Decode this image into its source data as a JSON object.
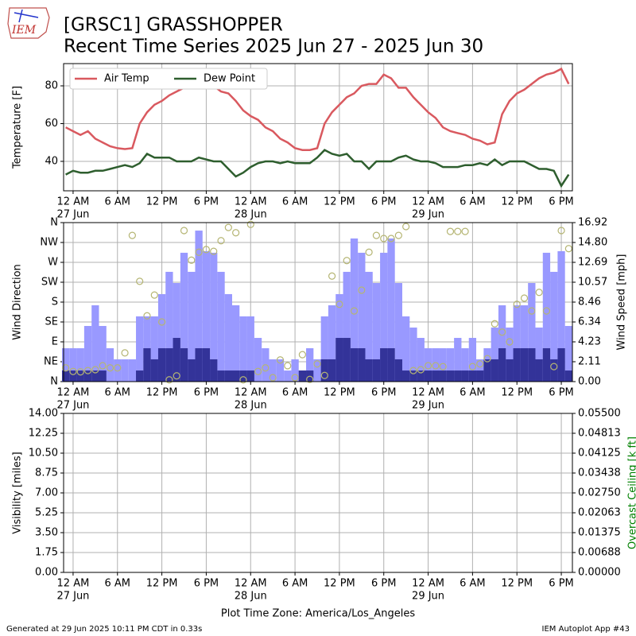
{
  "header": {
    "logo": "IEM",
    "title": "[GRSC1] GRASSHOPPER",
    "subtitle": "Recent Time Series 2025 Jun 27 - 2025 Jun 30"
  },
  "footer": {
    "left": "Generated at 29 Jun 2025 10:11 PM CDT in 0.33s",
    "right": "IEM Autoplot App #43"
  },
  "chart_data": [
    {
      "type": "line",
      "ylabel": "Temperature [F]",
      "grid": true,
      "legend": "upper left",
      "x": [
        "26 Jun 23:00",
        "27 Jun 00:00",
        "27 Jun 01:00",
        "27 Jun 02:00",
        "27 Jun 03:00",
        "27 Jun 04:00",
        "27 Jun 05:00",
        "27 Jun 06:00",
        "27 Jun 07:00",
        "27 Jun 08:00",
        "27 Jun 09:00",
        "27 Jun 10:00",
        "27 Jun 11:00",
        "27 Jun 12:00",
        "27 Jun 13:00",
        "27 Jun 14:00",
        "27 Jun 15:00",
        "27 Jun 16:00",
        "27 Jun 17:00",
        "27 Jun 18:00",
        "27 Jun 19:00",
        "27 Jun 20:00",
        "27 Jun 21:00",
        "27 Jun 22:00",
        "27 Jun 23:00",
        "28 Jun 00:00",
        "28 Jun 01:00",
        "28 Jun 02:00",
        "28 Jun 03:00",
        "28 Jun 04:00",
        "28 Jun 05:00",
        "28 Jun 06:00",
        "28 Jun 07:00",
        "28 Jun 08:00",
        "28 Jun 09:00",
        "28 Jun 10:00",
        "28 Jun 11:00",
        "28 Jun 12:00",
        "28 Jun 13:00",
        "28 Jun 14:00",
        "28 Jun 15:00",
        "28 Jun 16:00",
        "28 Jun 17:00",
        "28 Jun 18:00",
        "28 Jun 19:00",
        "28 Jun 20:00",
        "28 Jun 21:00",
        "28 Jun 22:00",
        "28 Jun 23:00",
        "29 Jun 00:00",
        "29 Jun 01:00",
        "29 Jun 02:00",
        "29 Jun 03:00",
        "29 Jun 04:00",
        "29 Jun 05:00",
        "29 Jun 06:00",
        "29 Jun 07:00",
        "29 Jun 08:00",
        "29 Jun 09:00",
        "29 Jun 10:00",
        "29 Jun 11:00",
        "29 Jun 12:00",
        "29 Jun 13:00",
        "29 Jun 14:00",
        "29 Jun 15:00",
        "29 Jun 16:00",
        "29 Jun 17:00",
        "29 Jun 18:00",
        "29 Jun 19:00"
      ],
      "series": [
        {
          "name": "Air Temp",
          "color": "#d9595f",
          "values": [
            58,
            56,
            54,
            56,
            52,
            50,
            48,
            47,
            46.5,
            47,
            60,
            66,
            70,
            72,
            75,
            77,
            79,
            81,
            82,
            82,
            80,
            77,
            76,
            72,
            67,
            64,
            62,
            58,
            56,
            52,
            50,
            47,
            46,
            46,
            47,
            60,
            66,
            70,
            74,
            76,
            80,
            81,
            81,
            86,
            84,
            79,
            79,
            74,
            70,
            66,
            63,
            58,
            56,
            55,
            54,
            52,
            51,
            49,
            50,
            65,
            72,
            76,
            78,
            81,
            84,
            86,
            87,
            89,
            81
          ]
        },
        {
          "name": "Dew Point",
          "color": "#2e5e2e",
          "values": [
            33,
            35,
            34,
            34,
            35,
            35,
            36,
            37,
            38,
            37,
            39,
            44,
            42,
            42,
            42,
            40,
            40,
            40,
            42,
            41,
            40,
            40,
            36,
            32,
            34,
            37,
            39,
            40,
            40,
            39,
            40,
            39,
            39,
            39,
            42,
            46,
            44,
            43,
            44,
            40,
            40,
            36,
            40,
            40,
            40,
            42,
            43,
            41,
            40,
            40,
            39,
            37,
            37,
            37,
            38,
            38,
            39,
            38,
            41,
            38,
            40,
            40,
            40,
            38,
            36,
            36,
            35,
            27,
            33
          ]
        }
      ],
      "xlim": [
        "26 Jun 22:43",
        "29 Jun 19:30"
      ],
      "ylim": [
        24.4,
        91.8
      ],
      "yticks": [
        40,
        60,
        80
      ],
      "xticks": [
        {
          "value": "27 Jun 00:00",
          "label": "12 AM",
          "date": "27 Jun"
        },
        {
          "value": "27 Jun 06:00",
          "label": "6 AM"
        },
        {
          "value": "27 Jun 12:00",
          "label": "12 PM"
        },
        {
          "value": "27 Jun 18:00",
          "label": "6 PM"
        },
        {
          "value": "28 Jun 00:00",
          "label": "12 AM",
          "date": "28 Jun"
        },
        {
          "value": "28 Jun 06:00",
          "label": "6 AM"
        },
        {
          "value": "28 Jun 12:00",
          "label": "12 PM"
        },
        {
          "value": "28 Jun 18:00",
          "label": "6 PM"
        },
        {
          "value": "29 Jun 00:00",
          "label": "12 AM",
          "date": "29 Jun"
        },
        {
          "value": "29 Jun 06:00",
          "label": "6 AM"
        },
        {
          "value": "29 Jun 12:00",
          "label": "12 PM"
        },
        {
          "value": "29 Jun 18:00",
          "label": "6 PM"
        }
      ]
    },
    {
      "type": "bar",
      "ylabel": "Wind Direction",
      "y2label": "Wind Speed [mph]",
      "grid": true,
      "x": [
        "26 Jun 23:00",
        "27 Jun 00:00",
        "27 Jun 01:00",
        "27 Jun 02:00",
        "27 Jun 03:00",
        "27 Jun 04:00",
        "27 Jun 05:00",
        "27 Jun 06:00",
        "27 Jun 07:00",
        "27 Jun 08:00",
        "27 Jun 09:00",
        "27 Jun 10:00",
        "27 Jun 11:00",
        "27 Jun 12:00",
        "27 Jun 13:00",
        "27 Jun 14:00",
        "27 Jun 15:00",
        "27 Jun 16:00",
        "27 Jun 17:00",
        "27 Jun 18:00",
        "27 Jun 19:00",
        "27 Jun 20:00",
        "27 Jun 21:00",
        "27 Jun 22:00",
        "27 Jun 23:00",
        "28 Jun 00:00",
        "28 Jun 01:00",
        "28 Jun 02:00",
        "28 Jun 03:00",
        "28 Jun 04:00",
        "28 Jun 05:00",
        "28 Jun 06:00",
        "28 Jun 07:00",
        "28 Jun 08:00",
        "28 Jun 09:00",
        "28 Jun 10:00",
        "28 Jun 11:00",
        "28 Jun 12:00",
        "28 Jun 13:00",
        "28 Jun 14:00",
        "28 Jun 15:00",
        "28 Jun 16:00",
        "28 Jun 17:00",
        "28 Jun 18:00",
        "28 Jun 19:00",
        "28 Jun 20:00",
        "28 Jun 21:00",
        "28 Jun 22:00",
        "28 Jun 23:00",
        "29 Jun 00:00",
        "29 Jun 01:00",
        "29 Jun 02:00",
        "29 Jun 03:00",
        "29 Jun 04:00",
        "29 Jun 05:00",
        "29 Jun 06:00",
        "29 Jun 07:00",
        "29 Jun 08:00",
        "29 Jun 09:00",
        "29 Jun 10:00",
        "29 Jun 11:00",
        "29 Jun 12:00",
        "29 Jun 13:00",
        "29 Jun 14:00",
        "29 Jun 15:00",
        "29 Jun 16:00",
        "29 Jun 17:00",
        "29 Jun 18:00",
        "29 Jun 19:00"
      ],
      "series": [
        {
          "color": "#9999ff",
          "axis": "y2",
          "values": [
            3.55,
            3.55,
            3.55,
            5.92,
            8.12,
            5.92,
            3.55,
            2.37,
            2.37,
            2.37,
            6.94,
            6.94,
            6.94,
            9.31,
            11.68,
            10.49,
            13.71,
            11.68,
            16.07,
            13.88,
            13.71,
            11.68,
            9.31,
            8.12,
            6.94,
            6.94,
            4.65,
            3.55,
            2.37,
            2.37,
            1.18,
            2.37,
            1.18,
            3.55,
            2.37,
            6.94,
            8.12,
            9.31,
            11.68,
            15.23,
            13.71,
            11.68,
            10.49,
            13.71,
            15.23,
            10.49,
            6.94,
            5.75,
            4.65,
            3.55,
            3.55,
            3.55,
            3.55,
            4.65,
            3.55,
            4.65,
            2.37,
            3.55,
            5.75,
            8.12,
            5.75,
            8.12,
            8.12,
            10.49,
            5.75,
            13.71,
            11.68,
            13.88,
            5.92
          ]
        },
        {
          "color": "#333399",
          "axis": "y2",
          "values": [
            1.18,
            1.18,
            1.18,
            1.18,
            1.18,
            1.18,
            0,
            0,
            0,
            0,
            1.18,
            3.55,
            2.37,
            3.55,
            3.55,
            4.65,
            3.55,
            2.37,
            3.55,
            3.55,
            2.37,
            1.18,
            1.18,
            1.18,
            1.18,
            1.18,
            0,
            0,
            0,
            0,
            0,
            0,
            1.18,
            1.18,
            0,
            2.37,
            2.37,
            4.65,
            4.65,
            3.55,
            3.55,
            2.37,
            2.37,
            3.55,
            3.55,
            2.37,
            1.18,
            1.18,
            1.18,
            1.18,
            1.18,
            1.18,
            1.18,
            1.18,
            1.18,
            1.18,
            1.18,
            2.37,
            2.37,
            3.55,
            2.37,
            3.55,
            3.55,
            3.55,
            2.37,
            3.55,
            2.37,
            3.55,
            1.18
          ]
        },
        {
          "type": "scatter",
          "color": "#b5b573",
          "values": [
            31,
            23,
            22,
            25,
            27,
            36,
            31,
            31,
            65,
            331,
            227,
            149,
            196,
            135,
            4,
            13,
            342,
            275,
            293,
            299,
            295,
            319,
            349,
            337,
            4,
            356,
            23,
            31,
            9,
            49,
            36,
            9,
            61,
            5,
            40,
            14,
            239,
            175,
            274,
            160,
            207,
            293,
            331,
            324,
            324,
            331,
            351,
            25,
            27,
            36,
            36,
            34,
            340,
            340,
            340,
            34,
            40,
            52,
            131,
            112,
            90,
            175,
            189,
            160,
            202,
            160,
            34,
            342,
            301
          ]
        }
      ],
      "xlim": [
        "26 Jun 22:43",
        "29 Jun 19:30"
      ],
      "ylim": [
        0,
        360
      ],
      "yticks": [
        {
          "value": 0,
          "label": "N"
        },
        {
          "value": 45,
          "label": "NE"
        },
        {
          "value": 90,
          "label": "E"
        },
        {
          "value": 135,
          "label": "SE"
        },
        {
          "value": 180,
          "label": "S"
        },
        {
          "value": 225,
          "label": "SW"
        },
        {
          "value": 270,
          "label": "W"
        },
        {
          "value": 315,
          "label": "NW"
        },
        {
          "value": 360,
          "label": "N"
        }
      ],
      "y2lim": [
        0,
        16.92
      ],
      "y2ticks": [
        {
          "value": 0,
          "label": "0.00"
        },
        {
          "value": 2.115,
          "label": "2.11"
        },
        4.23,
        {
          "value": 6.345,
          "label": "6.34"
        },
        8.46,
        {
          "value": 10.575,
          "label": "10.57"
        },
        12.69,
        {
          "value": 14.805,
          "label": "14.80"
        },
        16.92
      ],
      "xticks": [
        {
          "value": "27 Jun 00:00",
          "label": "12 AM",
          "date": "27 Jun"
        },
        {
          "value": "27 Jun 06:00",
          "label": "6 AM"
        },
        {
          "value": "27 Jun 12:00",
          "label": "12 PM"
        },
        {
          "value": "27 Jun 18:00",
          "label": "6 PM"
        },
        {
          "value": "28 Jun 00:00",
          "label": "12 AM",
          "date": "28 Jun"
        },
        {
          "value": "28 Jun 06:00",
          "label": "6 AM"
        },
        {
          "value": "28 Jun 12:00",
          "label": "12 PM"
        },
        {
          "value": "28 Jun 18:00",
          "label": "6 PM"
        },
        {
          "value": "29 Jun 00:00",
          "label": "12 AM",
          "date": "29 Jun"
        },
        {
          "value": "29 Jun 06:00",
          "label": "6 AM"
        },
        {
          "value": "29 Jun 12:00",
          "label": "12 PM"
        },
        {
          "value": "29 Jun 18:00",
          "label": "6 PM"
        }
      ]
    },
    {
      "type": "line",
      "ylabel": "Visibility [miles]",
      "y2label": "Overcast Ceiling [k ft]",
      "y2color": "#008000",
      "xlabel": "Plot Time Zone: America/Los_Angeles",
      "grid": true,
      "series": [],
      "xlim": [
        "26 Jun 22:43",
        "29 Jun 19:30"
      ],
      "ylim": [
        0,
        14
      ],
      "yticks": [
        {
          "value": 0,
          "label": "0.00"
        },
        1.75,
        {
          "value": 3.5,
          "label": "3.50"
        },
        5.25,
        {
          "value": 7,
          "label": "7.00"
        },
        8.75,
        {
          "value": 10.5,
          "label": "10.50"
        },
        12.25,
        {
          "value": 14,
          "label": "14.00"
        }
      ],
      "y2lim": [
        0,
        0.055
      ],
      "y2ticks": [
        {
          "value": 0,
          "label": "0.00000"
        },
        {
          "value": 0.006875,
          "label": "0.00688"
        },
        {
          "value": 0.01375,
          "label": "0.01375"
        },
        {
          "value": 0.020625,
          "label": "0.02063"
        },
        {
          "value": 0.0275,
          "label": "0.02750"
        },
        {
          "value": 0.034375,
          "label": "0.03438"
        },
        {
          "value": 0.04125,
          "label": "0.04125"
        },
        {
          "value": 0.048125,
          "label": "0.04813"
        },
        {
          "value": 0.055,
          "label": "0.05500"
        }
      ],
      "xticks": [
        {
          "value": "27 Jun 00:00",
          "label": "12 AM",
          "date": "27 Jun"
        },
        {
          "value": "27 Jun 06:00",
          "label": "6 AM"
        },
        {
          "value": "27 Jun 12:00",
          "label": "12 PM"
        },
        {
          "value": "27 Jun 18:00",
          "label": "6 PM"
        },
        {
          "value": "28 Jun 00:00",
          "label": "12 AM",
          "date": "28 Jun"
        },
        {
          "value": "28 Jun 06:00",
          "label": "6 AM"
        },
        {
          "value": "28 Jun 12:00",
          "label": "12 PM"
        },
        {
          "value": "28 Jun 18:00",
          "label": "6 PM"
        },
        {
          "value": "29 Jun 00:00",
          "label": "12 AM",
          "date": "29 Jun"
        },
        {
          "value": "29 Jun 06:00",
          "label": "6 AM"
        },
        {
          "value": "29 Jun 12:00",
          "label": "12 PM"
        },
        {
          "value": "29 Jun 18:00",
          "label": "6 PM"
        }
      ]
    }
  ]
}
